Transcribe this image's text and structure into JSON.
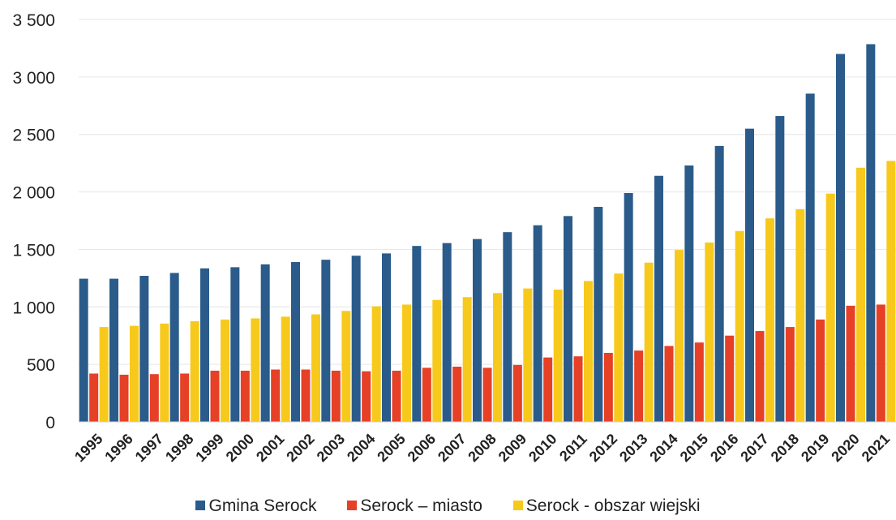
{
  "chart_data": {
    "type": "bar",
    "categories": [
      "1995",
      "1996",
      "1997",
      "1998",
      "1999",
      "2000",
      "2001",
      "2002",
      "2003",
      "2004",
      "2005",
      "2006",
      "2007",
      "2008",
      "2009",
      "2010",
      "2011",
      "2012",
      "2013",
      "2014",
      "2015",
      "2016",
      "2017",
      "2018",
      "2019",
      "2020",
      "2021"
    ],
    "ylim": [
      0,
      3500
    ],
    "yticks": [
      {
        "value": 0,
        "label": "0"
      },
      {
        "value": 500,
        "label": "500"
      },
      {
        "value": 1000,
        "label": "1 000"
      },
      {
        "value": 1500,
        "label": "1 500"
      },
      {
        "value": 2000,
        "label": "2 000"
      },
      {
        "value": 2500,
        "label": "2 500"
      },
      {
        "value": 3000,
        "label": "3 000"
      },
      {
        "value": 3500,
        "label": "3 500"
      }
    ],
    "grid": true,
    "legend_position": "bottom",
    "series": [
      {
        "name": "Gmina Serock",
        "color": "#2a5b8a",
        "values": [
          1245,
          1245,
          1270,
          1295,
          1335,
          1345,
          1370,
          1390,
          1410,
          1445,
          1465,
          1530,
          1555,
          1590,
          1650,
          1710,
          1790,
          1870,
          1990,
          2140,
          2230,
          2400,
          2550,
          2660,
          2855,
          3200,
          3285
        ]
      },
      {
        "name": "Serock – miasto",
        "color": "#e64027",
        "values": [
          420,
          410,
          415,
          420,
          445,
          445,
          455,
          455,
          445,
          440,
          445,
          470,
          480,
          470,
          495,
          560,
          570,
          600,
          620,
          660,
          690,
          750,
          790,
          825,
          890,
          1010,
          1020
        ]
      },
      {
        "name": "Serock - obszar wiejski",
        "color": "#f7c91c",
        "values": [
          825,
          835,
          855,
          875,
          890,
          900,
          915,
          935,
          965,
          1005,
          1020,
          1060,
          1085,
          1120,
          1160,
          1150,
          1225,
          1290,
          1385,
          1495,
          1560,
          1660,
          1770,
          1850,
          1985,
          2210,
          2270
        ]
      }
    ]
  }
}
